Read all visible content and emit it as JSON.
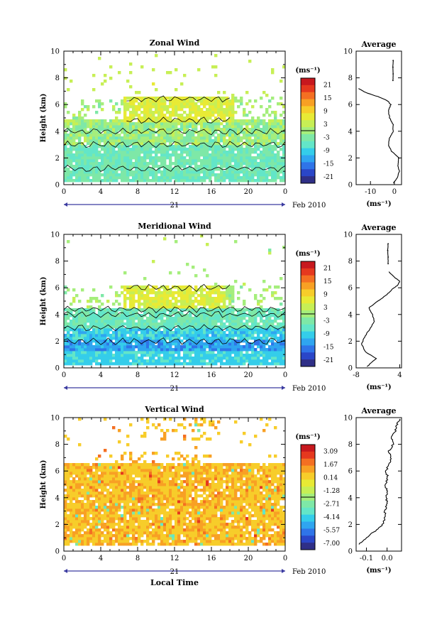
{
  "chart_data": [
    {
      "type": "heatmap",
      "title": "Zonal Wind",
      "ylabel": "Height (km)",
      "ylim": [
        0,
        10
      ],
      "y_ticks": [
        "0",
        "2",
        "4",
        "6",
        "8",
        "10"
      ],
      "x_ticks": [
        "0",
        "4",
        "8",
        "12",
        "16",
        "20",
        "0"
      ],
      "xlim": [
        0,
        24
      ],
      "date_day": "21",
      "date_label": "Feb 2010",
      "colorbar": {
        "unit": "(ms⁻¹)",
        "labels": [
          "21",
          "15",
          "9",
          "3",
          "-3",
          "-9",
          "-15",
          "-21"
        ],
        "range": [
          -24,
          24
        ]
      },
      "profile": {
        "title": "Average",
        "x_ticks": [
          "-10",
          "0"
        ],
        "xlim": [
          -16,
          3
        ],
        "y_ticks": [
          "0",
          "2",
          "4",
          "6",
          "8",
          "10"
        ],
        "ylim": [
          0,
          10
        ],
        "unit": "(ms⁻¹)",
        "points": [
          [
            -0.5,
            0.1
          ],
          [
            1.2,
            0.5
          ],
          [
            2.0,
            1.0
          ],
          [
            1.5,
            1.5
          ],
          [
            1.8,
            2.0
          ],
          [
            -1.2,
            2.5
          ],
          [
            -2.5,
            3.0
          ],
          [
            -2.0,
            3.5
          ],
          [
            -0.5,
            4.0
          ],
          [
            -0.5,
            4.5
          ],
          [
            -2.0,
            5.0
          ],
          [
            -2.5,
            5.5
          ],
          [
            -1.5,
            6.0
          ],
          [
            -3.0,
            6.3
          ],
          [
            -7.0,
            6.6
          ],
          [
            -12.0,
            6.9
          ],
          [
            -15.0,
            7.2
          ]
        ],
        "points_upper": [
          [
            -0.6,
            7.8
          ],
          [
            -0.5,
            8.3
          ],
          [
            -0.6,
            8.8
          ],
          [
            -0.5,
            9.3
          ]
        ]
      }
    },
    {
      "type": "heatmap",
      "title": "Meridional Wind",
      "ylabel": "Height (km)",
      "ylim": [
        0,
        10
      ],
      "y_ticks": [
        "0",
        "2",
        "4",
        "6",
        "8",
        "10"
      ],
      "x_ticks": [
        "0",
        "4",
        "8",
        "12",
        "16",
        "20",
        "0"
      ],
      "xlim": [
        0,
        24
      ],
      "date_day": "21",
      "date_label": "Feb 2010",
      "colorbar": {
        "unit": "(ms⁻¹)",
        "labels": [
          "21",
          "15",
          "9",
          "3",
          "-3",
          "-9",
          "-15",
          "-21"
        ],
        "range": [
          -24,
          24
        ]
      },
      "profile": {
        "title": "Average",
        "x_ticks": [
          "-8",
          "4"
        ],
        "xlim": [
          -8,
          4.5
        ],
        "y_ticks": [
          "0",
          "2",
          "4",
          "6",
          "8",
          "10"
        ],
        "ylim": [
          0,
          10
        ],
        "unit": "(ms⁻¹)",
        "points": [
          [
            -5.0,
            0.1
          ],
          [
            -2.5,
            0.7
          ],
          [
            -5.5,
            1.2
          ],
          [
            -6.5,
            1.8
          ],
          [
            -5.5,
            2.4
          ],
          [
            -4.0,
            3.0
          ],
          [
            -3.0,
            3.5
          ],
          [
            -3.5,
            4.0
          ],
          [
            -4.5,
            4.5
          ],
          [
            -2.0,
            5.0
          ],
          [
            0.5,
            5.5
          ],
          [
            2.0,
            5.9
          ],
          [
            3.5,
            6.2
          ],
          [
            4.0,
            6.5
          ],
          [
            2.5,
            6.8
          ],
          [
            1.0,
            7.2
          ]
        ],
        "points_upper": [
          [
            0.8,
            7.8
          ],
          [
            0.8,
            8.3
          ],
          [
            0.7,
            8.8
          ],
          [
            0.8,
            9.3
          ]
        ]
      }
    },
    {
      "type": "heatmap",
      "title": "Vertical Wind",
      "ylabel": "Height (km)",
      "xlabel": "Local Time",
      "ylim": [
        0,
        10
      ],
      "y_ticks": [
        "0",
        "2",
        "4",
        "6",
        "8",
        "10"
      ],
      "x_ticks": [
        "0",
        "4",
        "8",
        "12",
        "16",
        "20",
        "0"
      ],
      "xlim": [
        0,
        24
      ],
      "date_day": "21",
      "date_label": "Feb 2010",
      "colorbar": {
        "unit": "(ms⁻¹)",
        "labels": [
          "3.09",
          "1.67",
          "0.14",
          "-1.28",
          "-2.71",
          "-4.14",
          "-5.57",
          "-7.00"
        ],
        "range": [
          -7.7,
          3.8
        ]
      },
      "profile": {
        "title": "Average",
        "x_ticks": [
          "-0.1",
          "0.0"
        ],
        "xlim": [
          -0.15,
          0.07
        ],
        "y_ticks": [
          "0",
          "2",
          "4",
          "6",
          "8",
          "10"
        ],
        "ylim": [
          0,
          10
        ],
        "unit": "(ms⁻¹)",
        "points": [
          [
            -0.14,
            0.5
          ],
          [
            -0.1,
            1.0
          ],
          [
            -0.06,
            1.5
          ],
          [
            -0.02,
            2.0
          ],
          [
            -0.01,
            2.5
          ],
          [
            -0.01,
            3.0
          ],
          [
            0.0,
            3.5
          ],
          [
            -0.005,
            4.0
          ],
          [
            0.0,
            4.5
          ],
          [
            -0.01,
            5.0
          ],
          [
            0.005,
            5.5
          ],
          [
            -0.005,
            6.0
          ],
          [
            0.01,
            6.5
          ],
          [
            0.02,
            7.0
          ],
          [
            0.01,
            7.5
          ],
          [
            0.03,
            8.0
          ],
          [
            0.02,
            8.5
          ],
          [
            0.04,
            9.0
          ],
          [
            0.05,
            9.5
          ],
          [
            0.06,
            9.9
          ]
        ]
      }
    }
  ]
}
